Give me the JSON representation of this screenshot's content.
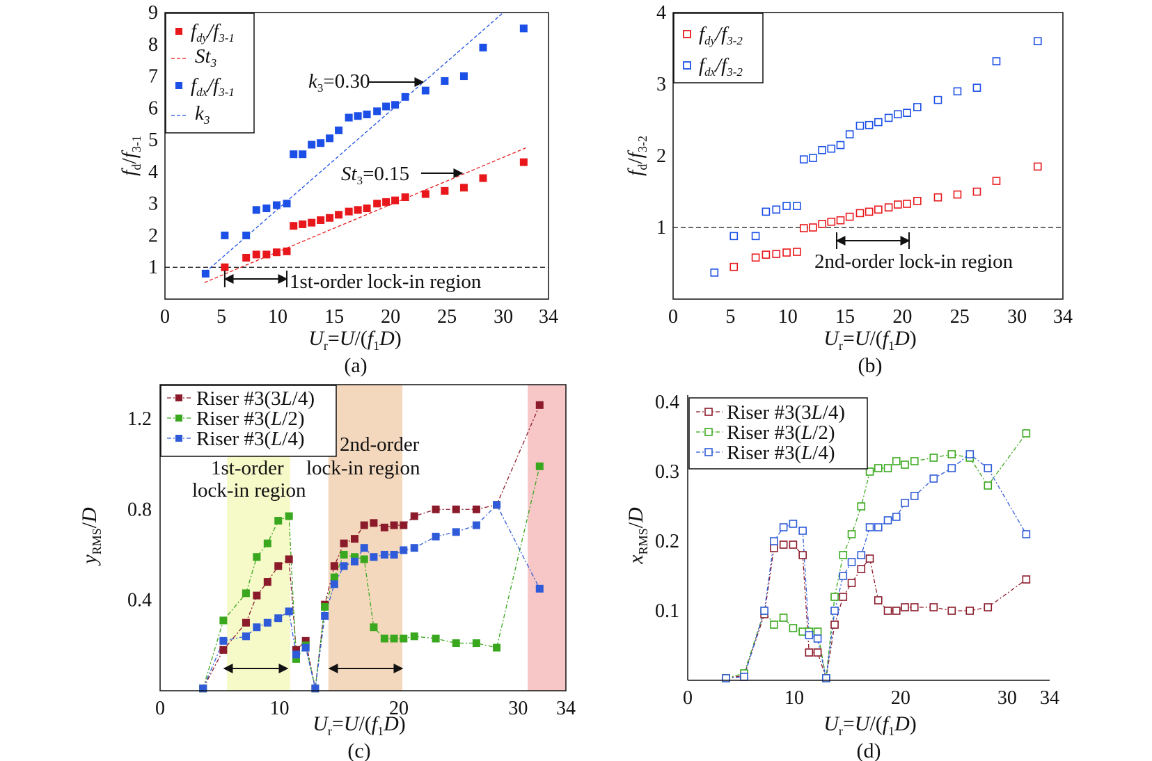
{
  "figure": {
    "panels": [
      {
        "id": "a",
        "caption": "(a)",
        "xlabel": "U_r=U/(f_1D)",
        "ylabel": "f_d/f_3-1",
        "xlim": [
          0,
          34
        ],
        "ylim": [
          0,
          9
        ],
        "xticks": [
          "0",
          "5",
          "10",
          "15",
          "20",
          "25",
          "30",
          "34"
        ],
        "yticks": [
          "1",
          "2",
          "3",
          "4",
          "5",
          "6",
          "7",
          "8",
          "9"
        ],
        "legend": [
          "f_dy/f_3-1",
          "St_3",
          "f_dx/f_3-1",
          "k_3"
        ],
        "annotations": {
          "k": "k_3=0.30",
          "st": "St_3=0.15",
          "region": "1st-order lock-in region"
        }
      },
      {
        "id": "b",
        "caption": "(b)",
        "xlabel": "U_r=U/(f_1D)",
        "ylabel": "f_d/f_3-2",
        "xlim": [
          0,
          34
        ],
        "ylim": [
          0,
          4
        ],
        "xticks": [
          "0",
          "5",
          "10",
          "15",
          "20",
          "25",
          "30",
          "34"
        ],
        "yticks": [
          "1",
          "2",
          "3",
          "4"
        ],
        "legend": [
          "f_dy/f_3-2",
          "f_dx/f_3-2"
        ],
        "annotations": {
          "region": "2nd-order lock-in region"
        }
      },
      {
        "id": "c",
        "caption": "(c)",
        "xlabel": "U_r=U/(f_1D)",
        "ylabel": "y_RMS/D",
        "xlim": [
          0,
          34
        ],
        "ylim": [
          0,
          1.35
        ],
        "xticks": [
          "0",
          "10",
          "20",
          "30",
          "34"
        ],
        "yticks": [
          "0.4",
          "0.8",
          "1.2"
        ],
        "legend": [
          "Riser #3(3L/4)",
          "Riser #3(L/2)",
          "Riser #3(L/4)"
        ],
        "annotations": {
          "first_a": "1st-order",
          "first_b": "lock-in region",
          "second_a": "2nd-order",
          "second_b": "lock-in region"
        }
      },
      {
        "id": "d",
        "caption": "(d)",
        "xlabel": "U_r=U/(f_1D)",
        "ylabel": "x_RMS/D",
        "xlim": [
          0,
          34
        ],
        "ylim": [
          0,
          0.41
        ],
        "xticks": [
          "0",
          "10",
          "20",
          "30",
          "34"
        ],
        "yticks": [
          "0.1",
          "0.2",
          "0.3",
          "0.4"
        ],
        "legend": [
          "Riser #3(3L/4)",
          "Riser #3(L/2)",
          "Riser #3(L/4)"
        ]
      }
    ]
  },
  "colors": {
    "red": "#e8171b",
    "blue": "#1b4fe6",
    "darkred": "#8b1a2a",
    "green": "#3aa81e",
    "c_blue": "#2f5bd8",
    "lockin1": "#f6f9c8",
    "lockin2": "#f4d8bd",
    "lockin3": "#f7c6c6"
  },
  "chart_data": [
    {
      "panel": "a",
      "type": "scatter",
      "series": [
        {
          "name": "f_dy/f_3-1",
          "x": [
            5.3,
            7.2,
            8.1,
            9.0,
            9.9,
            10.8,
            11.4,
            12.2,
            13.0,
            13.8,
            14.6,
            15.4,
            16.3,
            17.1,
            17.9,
            18.8,
            19.6,
            20.4,
            21.3,
            23.1,
            24.8,
            26.5,
            28.2,
            31.8
          ],
          "y": [
            1.0,
            1.3,
            1.4,
            1.4,
            1.47,
            1.5,
            2.3,
            2.35,
            2.4,
            2.48,
            2.55,
            2.65,
            2.75,
            2.8,
            2.85,
            3.0,
            3.05,
            3.1,
            3.2,
            3.3,
            3.4,
            3.5,
            3.8,
            4.3
          ]
        },
        {
          "name": "f_dx/f_3-1",
          "x": [
            3.6,
            5.3,
            7.2,
            8.1,
            9.0,
            9.9,
            10.8,
            11.4,
            12.2,
            13.0,
            13.8,
            14.6,
            15.4,
            16.3,
            17.1,
            17.9,
            18.8,
            19.6,
            20.4,
            21.3,
            23.1,
            24.8,
            26.5,
            28.2,
            31.8
          ],
          "y": [
            0.8,
            2.0,
            2.0,
            2.8,
            2.85,
            2.95,
            3.0,
            4.55,
            4.55,
            4.85,
            4.9,
            5.05,
            5.3,
            5.7,
            5.75,
            5.8,
            5.9,
            6.05,
            6.1,
            6.35,
            6.55,
            6.85,
            7.0,
            7.9,
            8.5
          ]
        },
        {
          "name": "St_3",
          "type": "line",
          "x": [
            3.5,
            32
          ],
          "y": [
            0.52,
            4.75
          ]
        },
        {
          "name": "k_3",
          "type": "line",
          "x": [
            3.6,
            30
          ],
          "y": [
            0.85,
            9.0
          ]
        }
      ]
    },
    {
      "panel": "b",
      "type": "scatter",
      "series": [
        {
          "name": "f_dy/f_3-2",
          "x": [
            5.3,
            7.2,
            8.1,
            9.0,
            9.9,
            10.8,
            11.4,
            12.2,
            13.0,
            13.8,
            14.6,
            15.4,
            16.3,
            17.1,
            17.9,
            18.8,
            19.6,
            20.4,
            21.3,
            23.1,
            24.8,
            26.5,
            28.2,
            31.8
          ],
          "y": [
            0.45,
            0.58,
            0.62,
            0.63,
            0.65,
            0.66,
            0.99,
            1.0,
            1.05,
            1.08,
            1.1,
            1.15,
            1.2,
            1.22,
            1.25,
            1.28,
            1.32,
            1.33,
            1.37,
            1.42,
            1.46,
            1.5,
            1.65,
            1.85
          ]
        },
        {
          "name": "f_dx/f_3-2",
          "x": [
            3.6,
            5.3,
            7.2,
            8.1,
            9.0,
            9.9,
            10.8,
            11.4,
            12.2,
            13.0,
            13.8,
            14.6,
            15.4,
            16.3,
            17.1,
            17.9,
            18.8,
            19.6,
            20.4,
            21.3,
            23.1,
            24.8,
            26.5,
            28.2,
            31.8
          ],
          "y": [
            0.37,
            0.88,
            0.88,
            1.22,
            1.25,
            1.3,
            1.3,
            1.95,
            1.97,
            2.08,
            2.1,
            2.15,
            2.3,
            2.42,
            2.43,
            2.47,
            2.53,
            2.58,
            2.6,
            2.68,
            2.78,
            2.9,
            2.95,
            3.32,
            3.6
          ]
        },
        {
          "name": "",
          "type": "line",
          "x": [
            0,
            34
          ],
          "y": [
            1.0,
            1.0
          ]
        }
      ]
    },
    {
      "panel": "c",
      "type": "line",
      "series": [
        {
          "name": "Riser #3(3L/4)",
          "x": [
            3.6,
            5.3,
            7.2,
            8.1,
            9.0,
            9.9,
            10.8,
            11.4,
            12.2,
            13.0,
            13.8,
            14.6,
            15.4,
            16.3,
            17.1,
            17.9,
            18.8,
            19.6,
            20.4,
            21.3,
            23.1,
            24.8,
            26.5,
            28.2,
            31.8
          ],
          "y": [
            0.01,
            0.18,
            0.3,
            0.42,
            0.48,
            0.55,
            0.58,
            0.18,
            0.22,
            0.01,
            0.38,
            0.55,
            0.65,
            0.67,
            0.73,
            0.74,
            0.72,
            0.73,
            0.73,
            0.77,
            0.8,
            0.8,
            0.8,
            0.82,
            1.26
          ]
        },
        {
          "name": "Riser #3(L/2)",
          "x": [
            3.6,
            5.3,
            7.2,
            8.1,
            9.0,
            9.9,
            10.8,
            11.4,
            12.2,
            13.0,
            13.8,
            14.6,
            15.4,
            16.3,
            17.1,
            17.9,
            18.8,
            19.6,
            20.4,
            21.3,
            23.1,
            24.8,
            26.5,
            28.2,
            31.8
          ],
          "y": [
            0.01,
            0.31,
            0.43,
            0.59,
            0.65,
            0.75,
            0.77,
            0.14,
            0.2,
            0.01,
            0.37,
            0.5,
            0.6,
            0.59,
            0.58,
            0.28,
            0.23,
            0.23,
            0.23,
            0.24,
            0.23,
            0.21,
            0.21,
            0.19,
            0.99
          ]
        },
        {
          "name": "Riser #3(L/4)",
          "x": [
            3.6,
            5.3,
            7.2,
            8.1,
            9.0,
            9.9,
            10.8,
            11.4,
            12.2,
            13.0,
            13.8,
            14.6,
            15.4,
            16.3,
            17.1,
            17.9,
            18.8,
            19.6,
            20.4,
            21.3,
            23.1,
            24.8,
            26.5,
            28.2,
            31.8
          ],
          "y": [
            0.01,
            0.22,
            0.24,
            0.28,
            0.3,
            0.32,
            0.35,
            0.16,
            0.19,
            0.01,
            0.33,
            0.47,
            0.55,
            0.57,
            0.63,
            0.59,
            0.6,
            0.6,
            0.62,
            0.63,
            0.68,
            0.7,
            0.73,
            0.82,
            0.45
          ]
        }
      ]
    },
    {
      "panel": "d",
      "type": "line",
      "series": [
        {
          "name": "Riser #3(3L/4)",
          "x": [
            3.6,
            5.3,
            7.2,
            8.1,
            9.0,
            9.9,
            10.8,
            11.4,
            12.2,
            13.0,
            13.8,
            14.6,
            15.4,
            16.3,
            17.1,
            17.9,
            18.8,
            19.6,
            20.4,
            21.3,
            23.1,
            24.8,
            26.5,
            28.2,
            31.8
          ],
          "y": [
            0.003,
            0.007,
            0.095,
            0.19,
            0.195,
            0.195,
            0.18,
            0.04,
            0.04,
            0.003,
            0.08,
            0.12,
            0.14,
            0.16,
            0.175,
            0.115,
            0.1,
            0.1,
            0.105,
            0.105,
            0.105,
            0.1,
            0.1,
            0.105,
            0.145
          ]
        },
        {
          "name": "Riser #3(L/2)",
          "x": [
            3.6,
            5.3,
            7.2,
            8.1,
            9.0,
            9.9,
            10.8,
            11.4,
            12.2,
            13.0,
            13.8,
            14.6,
            15.4,
            16.3,
            17.1,
            17.9,
            18.8,
            19.6,
            20.4,
            21.3,
            23.1,
            24.8,
            26.5,
            28.2,
            31.8
          ],
          "y": [
            0.003,
            0.01,
            0.1,
            0.08,
            0.09,
            0.075,
            0.07,
            0.07,
            0.07,
            0.003,
            0.12,
            0.18,
            0.21,
            0.25,
            0.3,
            0.305,
            0.305,
            0.315,
            0.31,
            0.315,
            0.32,
            0.325,
            0.32,
            0.28,
            0.355
          ]
        },
        {
          "name": "Riser #3(L/4)",
          "x": [
            3.6,
            5.3,
            7.2,
            8.1,
            9.0,
            9.9,
            10.8,
            11.4,
            12.2,
            13.0,
            13.8,
            14.6,
            15.4,
            16.3,
            17.1,
            17.9,
            18.8,
            19.6,
            20.4,
            21.3,
            23.1,
            24.8,
            26.5,
            28.2,
            31.8
          ],
          "y": [
            0.003,
            0.005,
            0.1,
            0.2,
            0.22,
            0.225,
            0.215,
            0.065,
            0.06,
            0.003,
            0.1,
            0.15,
            0.17,
            0.18,
            0.22,
            0.22,
            0.23,
            0.235,
            0.255,
            0.265,
            0.29,
            0.305,
            0.325,
            0.305,
            0.21
          ]
        }
      ]
    }
  ]
}
